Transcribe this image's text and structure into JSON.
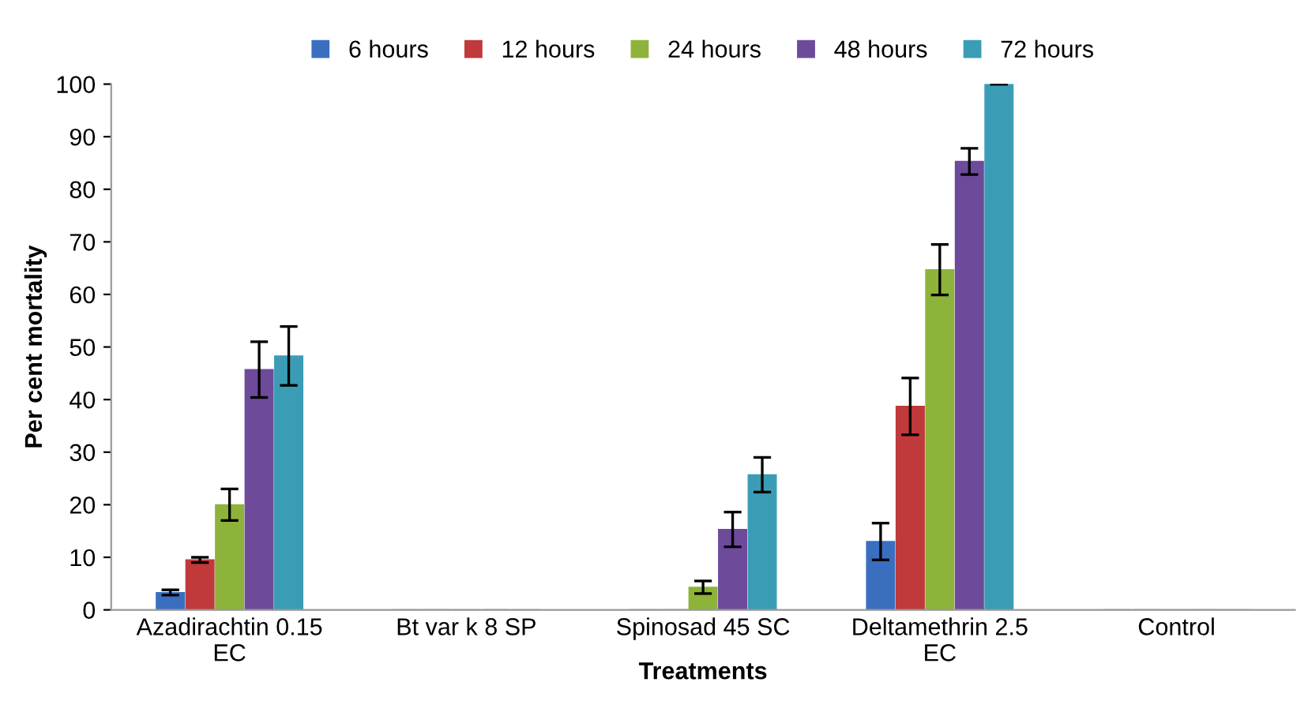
{
  "chart_data": {
    "type": "bar",
    "xlabel": "Treatments",
    "ylabel": "Per cent mortality",
    "categories": [
      "Azadirachtin 0.15\nEC",
      "Bt var k 8 SP",
      "Spinosad 45 SC",
      "Deltamethrin 2.5\nEC",
      "Control"
    ],
    "series": [
      {
        "name": "6 hours",
        "color": "#3a6fbf",
        "values": [
          3.3,
          0,
          0,
          13,
          0
        ],
        "errors": [
          0.5,
          null,
          null,
          3.5,
          null
        ]
      },
      {
        "name": "12 hours",
        "color": "#c0393b",
        "values": [
          9.5,
          0,
          0,
          38.7,
          0
        ],
        "errors": [
          0.5,
          null,
          null,
          5.4,
          null
        ]
      },
      {
        "name": "24 hours",
        "color": "#8db33a",
        "values": [
          20,
          0,
          4.3,
          64.7,
          0
        ],
        "errors": [
          3,
          null,
          1.2,
          4.8,
          null
        ]
      },
      {
        "name": "48 hours",
        "color": "#6e4a9b",
        "values": [
          45.7,
          0,
          15.3,
          85.3,
          0
        ],
        "errors": [
          5.3,
          null,
          3.3,
          2.5,
          null
        ]
      },
      {
        "name": "72 hours",
        "color": "#3a9db5",
        "values": [
          48.3,
          0,
          25.7,
          100,
          0
        ],
        "errors": [
          5.6,
          null,
          3.3,
          0,
          null
        ]
      }
    ],
    "ylim": [
      0,
      100
    ],
    "yticks": [
      0,
      10,
      20,
      30,
      40,
      50,
      60,
      70,
      80,
      90,
      100
    ],
    "grid": false,
    "legend": "top"
  }
}
